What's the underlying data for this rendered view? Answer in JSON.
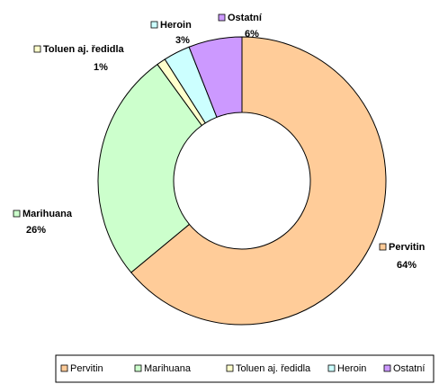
{
  "chart_data": {
    "type": "donut",
    "annotation": "ie",
    "categories": [
      "Pervitin",
      "Marihuana",
      "Toluen aj. ředidla",
      "Heroin",
      "Ostatní"
    ],
    "values": [
      64,
      26,
      1,
      3,
      6
    ],
    "value_labels": [
      "64%",
      "26%",
      "1%",
      "3%",
      "6%"
    ],
    "colors": [
      "#ffcc99",
      "#ccffcc",
      "#ffffcc",
      "#ccffff",
      "#cc99ff"
    ],
    "legend": "bottom"
  }
}
